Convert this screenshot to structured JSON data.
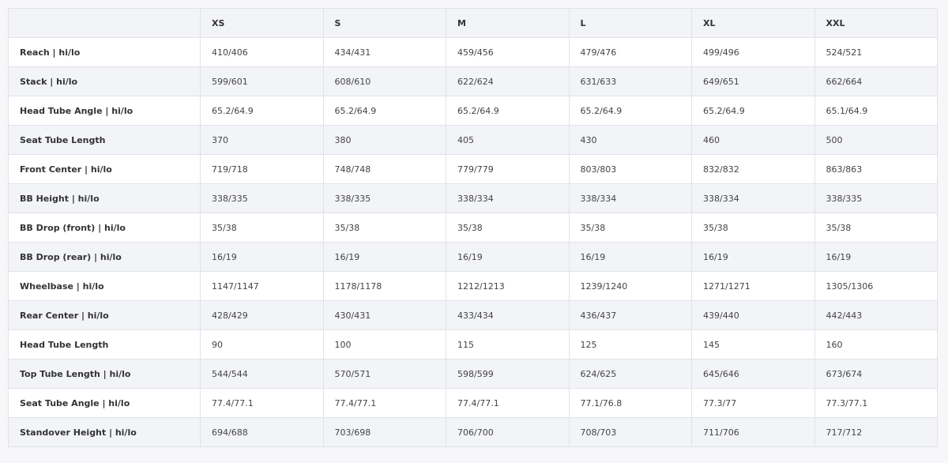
{
  "table": {
    "header": [
      "XS",
      "S",
      "M",
      "L",
      "XL",
      "XXL"
    ],
    "rows": [
      [
        "Reach | hi/lo",
        "410/406",
        "434/431",
        "459/456",
        "479/476",
        "499/496",
        "524/521"
      ],
      [
        "Stack | hi/lo",
        "599/601",
        "608/610",
        "622/624",
        "631/633",
        "649/651",
        "662/664"
      ],
      [
        "Head Tube Angle | hi/lo",
        "65.2/64.9",
        "65.2/64.9",
        "65.2/64.9",
        "65.2/64.9",
        "65.2/64.9",
        "65.1/64.9"
      ],
      [
        "Seat Tube Length",
        "370",
        "380",
        "405",
        "430",
        "460",
        "500"
      ],
      [
        "Front Center | hi/lo",
        "719/718",
        "748/748",
        "779/779",
        "803/803",
        "832/832",
        "863/863"
      ],
      [
        "BB Height | hi/lo",
        "338/335",
        "338/335",
        "338/334",
        "338/334",
        "338/334",
        "338/335"
      ],
      [
        "BB Drop (front) | hi/lo",
        "35/38",
        "35/38",
        "35/38",
        "35/38",
        "35/38",
        "35/38"
      ],
      [
        "BB Drop (rear) | hi/lo",
        "16/19",
        "16/19",
        "16/19",
        "16/19",
        "16/19",
        "16/19"
      ],
      [
        "Wheelbase | hi/lo",
        "1147/1147",
        "1178/1178",
        "1212/1213",
        "1239/1240",
        "1271/1271",
        "1305/1306"
      ],
      [
        "Rear Center | hi/lo",
        "428/429",
        "430/431",
        "433/434",
        "436/437",
        "439/440",
        "442/443"
      ],
      [
        "Head Tube Length",
        "90",
        "100",
        "115",
        "125",
        "145",
        "160"
      ],
      [
        "Top Tube Length | hi/lo",
        "544/544",
        "570/571",
        "598/599",
        "624/625",
        "645/646",
        "673/674"
      ],
      [
        "Seat Tube Angle | hi/lo",
        "77.4/77.1",
        "77.4/77.1",
        "77.4/77.1",
        "77.1/76.8",
        "77.3/77",
        "77.3/77.1"
      ],
      [
        "Standover Height | hi/lo",
        "694/688",
        "703/698",
        "706/700",
        "708/703",
        "711/706",
        "717/712"
      ]
    ]
  }
}
